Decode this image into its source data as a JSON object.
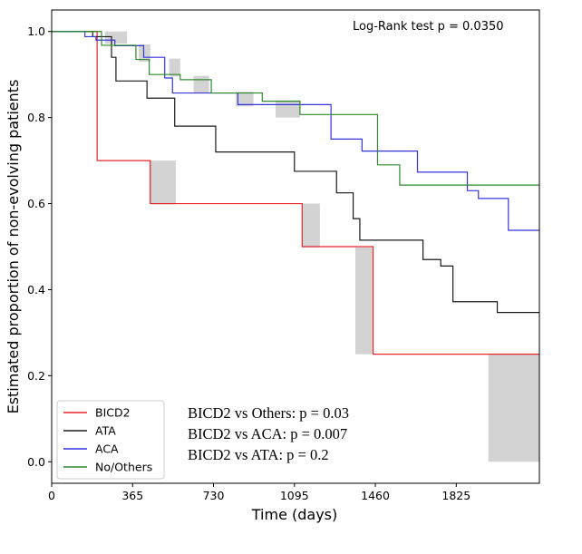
{
  "chart_data": {
    "type": "line",
    "subtype": "kaplan-meier step",
    "xlabel": "Time (days)",
    "ylabel": "Estimated proportion of non-evolving patients",
    "xlim": [
      0,
      2200
    ],
    "ylim": [
      -0.05,
      1.05
    ],
    "xticks": [
      0,
      365,
      730,
      1095,
      1460,
      1825
    ],
    "yticks": [
      0.0,
      0.2,
      0.4,
      0.6,
      0.8,
      1.0
    ],
    "annotation": "Log-Rank test p = 0.0350",
    "pvalues": [
      "BICD2 vs Others: p = 0.03",
      "BICD2 vs ACA: p = 0.007",
      "BICD2 vs ATA: p = 0.2"
    ],
    "legend_position": "lower-left",
    "series": [
      {
        "name": "BICD2",
        "color": "#e8262a",
        "steps": [
          [
            0,
            1.0
          ],
          [
            205,
            0.7
          ],
          [
            445,
            0.6
          ],
          [
            1130,
            0.5
          ],
          [
            1450,
            0.25
          ],
          [
            2200,
            0.25
          ]
        ]
      },
      {
        "name": "ATA",
        "color": "#1a1a1a",
        "steps": [
          [
            0,
            1.0
          ],
          [
            185,
            0.988
          ],
          [
            270,
            0.94
          ],
          [
            290,
            0.885
          ],
          [
            430,
            0.845
          ],
          [
            555,
            0.78
          ],
          [
            740,
            0.72
          ],
          [
            1095,
            0.675
          ],
          [
            1285,
            0.625
          ],
          [
            1360,
            0.565
          ],
          [
            1390,
            0.515
          ],
          [
            1675,
            0.47
          ],
          [
            1755,
            0.455
          ],
          [
            1810,
            0.372
          ],
          [
            2010,
            0.347
          ],
          [
            2200,
            0.347
          ]
        ]
      },
      {
        "name": "ACA",
        "color": "#3535e0",
        "steps": [
          [
            0,
            1.0
          ],
          [
            150,
            0.988
          ],
          [
            200,
            0.98
          ],
          [
            285,
            0.967
          ],
          [
            415,
            0.94
          ],
          [
            510,
            0.892
          ],
          [
            545,
            0.857
          ],
          [
            840,
            0.83
          ],
          [
            1005,
            0.83
          ],
          [
            1260,
            0.75
          ],
          [
            1400,
            0.722
          ],
          [
            1650,
            0.673
          ],
          [
            1875,
            0.63
          ],
          [
            1925,
            0.612
          ],
          [
            2060,
            0.538
          ],
          [
            2200,
            0.538
          ]
        ]
      },
      {
        "name": "No/Others",
        "color": "#2d8a2d",
        "steps": [
          [
            0,
            1.0
          ],
          [
            225,
            0.968
          ],
          [
            380,
            0.935
          ],
          [
            440,
            0.9
          ],
          [
            580,
            0.888
          ],
          [
            720,
            0.857
          ],
          [
            950,
            0.838
          ],
          [
            1120,
            0.807
          ],
          [
            1470,
            0.69
          ],
          [
            1570,
            0.643
          ],
          [
            2200,
            0.643
          ]
        ]
      }
    ],
    "ci_boxes": [
      [
        240,
        0.972,
        340,
        1.0
      ],
      [
        393,
        0.93,
        445,
        0.97
      ],
      [
        530,
        0.895,
        580,
        0.937
      ],
      [
        640,
        0.858,
        710,
        0.897
      ],
      [
        830,
        0.826,
        910,
        0.86
      ],
      [
        1010,
        0.8,
        1120,
        0.84
      ],
      [
        440,
        0.598,
        560,
        0.7
      ],
      [
        1130,
        0.498,
        1210,
        0.6
      ],
      [
        1370,
        0.25,
        1450,
        0.498
      ],
      [
        1970,
        0.0,
        2200,
        0.25
      ]
    ]
  }
}
